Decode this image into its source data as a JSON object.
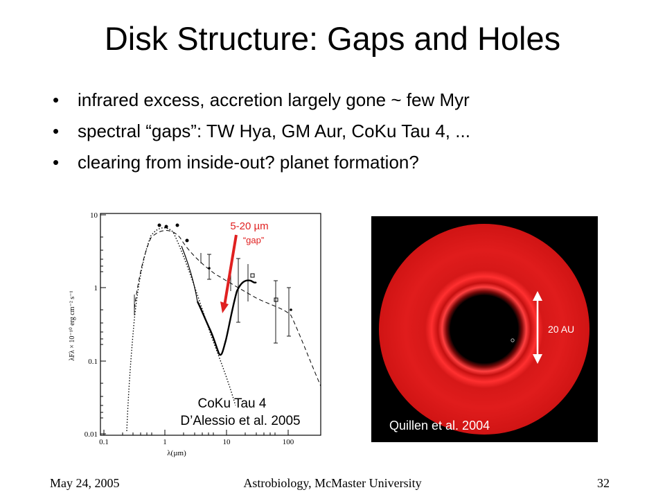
{
  "slide": {
    "title": "Disk Structure: Gaps and Holes",
    "bullets": [
      "infrared excess, accretion largely gone ~ few Myr",
      "spectral “gaps”: TW Hya, GM Aur, CoKu Tau 4, ...",
      "clearing from inside-out? planet formation?"
    ],
    "bullet_symbol": "•"
  },
  "sed_plot": {
    "annotation_line1": "5-20 µm",
    "annotation_line2": "“gap”",
    "caption_line1": "CoKu Tau 4",
    "caption_line2": "D’Alessio et al. 2005",
    "ylabel": "λFλ × 10⁻¹⁰ erg cm⁻² s⁻¹",
    "xlabel": "λ(µm)",
    "y_ticks": [
      "10",
      "1",
      "0.1",
      "0.01"
    ],
    "x_ticks": [
      "0.1",
      "1",
      "10",
      "100"
    ],
    "annotation_color": "#e02020"
  },
  "disk_image": {
    "scale_label": "20 AU",
    "caption": "Quillen et al. 2004",
    "disk_color": "#e11414"
  },
  "footer": {
    "date": "May 24, 2005",
    "venue": "Astrobiology, McMaster University",
    "page": "32"
  }
}
